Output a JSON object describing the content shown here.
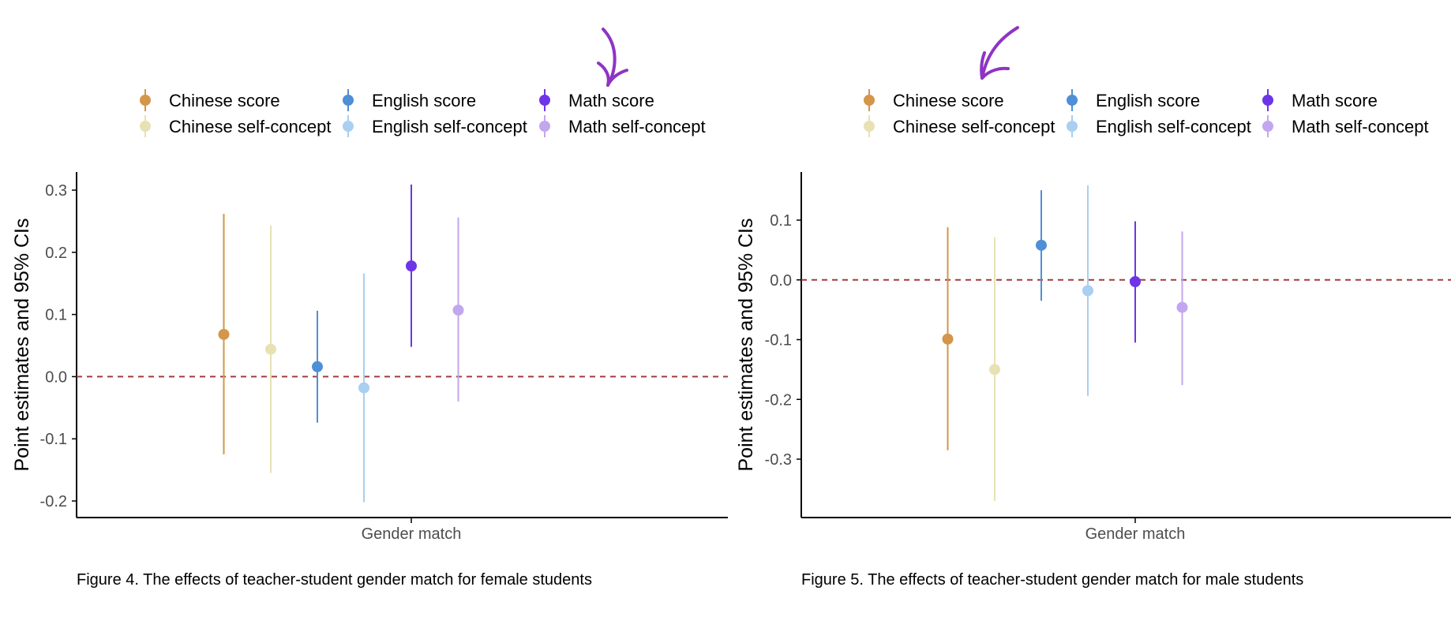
{
  "chart_data": [
    {
      "type": "errorbar",
      "title": "",
      "caption": "Figure 4. The effects of teacher-student gender match for female students",
      "xlabel": "",
      "ylabel": "Point estimates and 95% CIs",
      "categories": [
        "Gender match"
      ],
      "ylim": [
        -0.225,
        0.335
      ],
      "yticks": [
        "0.3",
        "0.2",
        "0.1",
        "0.0",
        "-0.1",
        "-0.2"
      ],
      "ytick_values": [
        0.3,
        0.2,
        0.1,
        0.0,
        -0.1,
        -0.2
      ],
      "reference_line": {
        "y": 0.0,
        "style": "dashed",
        "color": "#a33b3b"
      },
      "legend_position": "top",
      "annotation": "purple hand-drawn arrow pointing at Math score legend entry",
      "series": [
        {
          "name": "Chinese score",
          "estimate": 0.068,
          "ci_low": -0.125,
          "ci_high": 0.262,
          "color": "#d3964a"
        },
        {
          "name": "Chinese self-concept",
          "estimate": 0.044,
          "ci_low": -0.155,
          "ci_high": 0.243,
          "color": "#e8e1b4"
        },
        {
          "name": "English score",
          "estimate": 0.016,
          "ci_low": -0.074,
          "ci_high": 0.106,
          "color": "#4f8fd6"
        },
        {
          "name": "English self-concept",
          "estimate": -0.018,
          "ci_low": -0.202,
          "ci_high": 0.166,
          "color": "#a9cff1"
        },
        {
          "name": "Math score",
          "estimate": 0.178,
          "ci_low": 0.048,
          "ci_high": 0.309,
          "color": "#6e35e8"
        },
        {
          "name": "Math self-concept",
          "estimate": 0.107,
          "ci_low": -0.04,
          "ci_high": 0.256,
          "color": "#c2a7ee"
        }
      ]
    },
    {
      "type": "errorbar",
      "title": "",
      "caption": "Figure 5. The effects of teacher-student gender match for male students",
      "xlabel": "",
      "ylabel": "Point estimates and 95% CIs",
      "categories": [
        "Gender match"
      ],
      "ylim": [
        -0.395,
        0.18
      ],
      "yticks": [
        "0.1",
        "0.0",
        "-0.1",
        "-0.2",
        "-0.3"
      ],
      "ytick_values": [
        0.1,
        0.0,
        -0.1,
        -0.2,
        -0.3
      ],
      "reference_line": {
        "y": 0.0,
        "style": "dashed",
        "color": "#a33b3b"
      },
      "legend_position": "top",
      "annotation": "purple hand-drawn arrow pointing at Chinese score legend entry",
      "series": [
        {
          "name": "Chinese score",
          "estimate": -0.099,
          "ci_low": -0.285,
          "ci_high": 0.088,
          "color": "#d3964a"
        },
        {
          "name": "Chinese self-concept",
          "estimate": -0.15,
          "ci_low": -0.37,
          "ci_high": 0.071,
          "color": "#e8e1b4"
        },
        {
          "name": "English score",
          "estimate": 0.058,
          "ci_low": -0.035,
          "ci_high": 0.15,
          "color": "#4f8fd6"
        },
        {
          "name": "English self-concept",
          "estimate": -0.018,
          "ci_low": -0.194,
          "ci_high": 0.158,
          "color": "#a9cff1"
        },
        {
          "name": "Math score",
          "estimate": -0.003,
          "ci_low": -0.105,
          "ci_high": 0.098,
          "color": "#6e35e8"
        },
        {
          "name": "Math self-concept",
          "estimate": -0.046,
          "ci_low": -0.176,
          "ci_high": 0.081,
          "color": "#c2a7ee"
        }
      ]
    }
  ],
  "colors": {
    "axis": "#000000",
    "tick_text": "#4d4d4d",
    "reference_line": "#a33b3b",
    "annotation_arrow": "#8e34c4"
  }
}
